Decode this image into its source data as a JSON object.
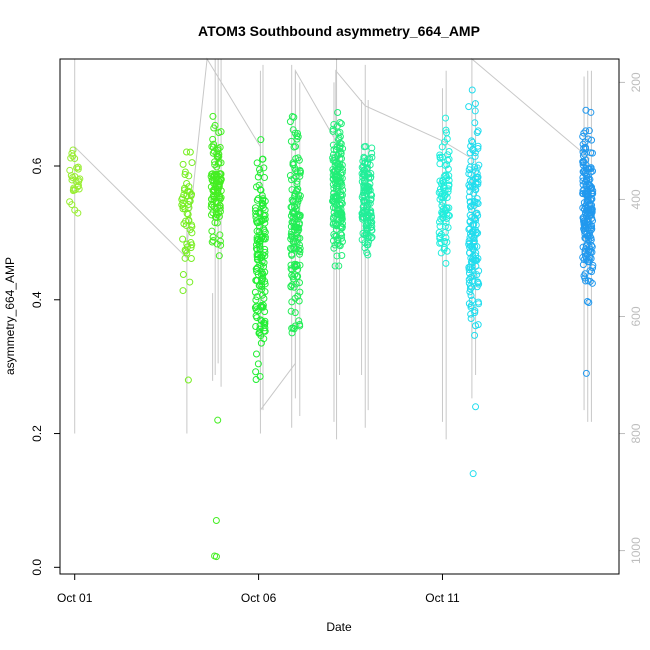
{
  "chart_data": {
    "type": "scatter",
    "title": "ATOM3 Southbound asymmetry_664_AMP",
    "xlabel": "Date",
    "ylabel": "asymmetry_664_AMP",
    "x_ticks": [
      "Oct 01",
      "Oct 06",
      "Oct 11"
    ],
    "x_tick_days": [
      1,
      6,
      11
    ],
    "xlim_days": [
      0.6,
      15.8
    ],
    "ylim": [
      -0.01,
      0.76
    ],
    "y_ticks": [
      0.0,
      0.2,
      0.4,
      0.6
    ],
    "y_tick_labels": [
      "0.0",
      "0.2",
      "0.4",
      "0.6"
    ],
    "secondary_axis": {
      "ticks": [
        200,
        400,
        600,
        800,
        1000
      ],
      "tick_labels": [
        "200",
        "400",
        "600",
        "800",
        "1000"
      ],
      "lim": [
        1040,
        160
      ],
      "color": "#bdbdbd",
      "series": {
        "name": "",
        "color": "#c8c8c8",
        "spikes": [
          {
            "day": 1.0,
            "top": 160,
            "bottom": 800
          },
          {
            "day": 4.05,
            "top": 440,
            "bottom": 800
          },
          {
            "day": 4.75,
            "top": 560,
            "bottom": 710
          },
          {
            "day": 4.82,
            "top": 160,
            "bottom": 700
          },
          {
            "day": 4.9,
            "top": 160,
            "bottom": 680
          },
          {
            "day": 4.98,
            "top": 160,
            "bottom": 720
          },
          {
            "day": 6.05,
            "top": 180,
            "bottom": 800
          },
          {
            "day": 6.12,
            "top": 170,
            "bottom": 760
          },
          {
            "day": 6.9,
            "top": 170,
            "bottom": 790
          },
          {
            "day": 7.0,
            "top": 180,
            "bottom": 740
          },
          {
            "day": 7.12,
            "top": 200,
            "bottom": 770
          },
          {
            "day": 8.05,
            "top": 200,
            "bottom": 780
          },
          {
            "day": 8.12,
            "top": 160,
            "bottom": 810
          },
          {
            "day": 8.2,
            "top": 300,
            "bottom": 700
          },
          {
            "day": 8.8,
            "top": 230,
            "bottom": 700
          },
          {
            "day": 8.9,
            "top": 170,
            "bottom": 790
          },
          {
            "day": 8.98,
            "top": 230,
            "bottom": 760
          },
          {
            "day": 11.0,
            "top": 210,
            "bottom": 780
          },
          {
            "day": 11.1,
            "top": 180,
            "bottom": 810
          },
          {
            "day": 11.8,
            "top": 280,
            "bottom": 740
          },
          {
            "day": 11.9,
            "top": 230,
            "bottom": 700
          },
          {
            "day": 14.85,
            "top": 190,
            "bottom": 760
          },
          {
            "day": 14.95,
            "top": 180,
            "bottom": 780
          },
          {
            "day": 15.05,
            "top": 180,
            "bottom": 780
          }
        ],
        "path": [
          [
            1.0,
            310
          ],
          [
            4.05,
            500
          ],
          [
            4.05,
            480
          ],
          [
            4.6,
            160
          ],
          [
            6.05,
            310
          ],
          [
            6.05,
            760
          ],
          [
            7.0,
            680
          ],
          [
            7.0,
            180
          ],
          [
            8.1,
            300
          ],
          [
            8.1,
            180
          ],
          [
            8.9,
            240
          ],
          [
            11.0,
            300
          ],
          [
            11.8,
            330
          ],
          [
            11.8,
            640
          ],
          [
            11.8,
            160
          ],
          [
            15.0,
            330
          ]
        ]
      }
    },
    "groups": [
      {
        "day": 1.0,
        "color": "#99ee33",
        "n": 28,
        "min": 0.48,
        "max": 0.67,
        "outliers": []
      },
      {
        "day": 4.05,
        "color": "#77ee22",
        "n": 55,
        "min": 0.38,
        "max": 0.67,
        "outliers": [
          0.28
        ]
      },
      {
        "day": 4.85,
        "color": "#44ee22",
        "n": 110,
        "min": 0.44,
        "max": 0.7,
        "outliers": [
          0.22,
          0.07,
          0.017,
          0.016
        ]
      },
      {
        "day": 6.05,
        "color": "#22ee33",
        "n": 150,
        "min": 0.25,
        "max": 0.69,
        "outliers": []
      },
      {
        "day": 7.0,
        "color": "#22ee55",
        "n": 150,
        "min": 0.3,
        "max": 0.72,
        "outliers": []
      },
      {
        "day": 8.15,
        "color": "#22ee77",
        "n": 170,
        "min": 0.41,
        "max": 0.7,
        "outliers": []
      },
      {
        "day": 8.95,
        "color": "#22ee99",
        "n": 130,
        "min": 0.42,
        "max": 0.67,
        "outliers": []
      },
      {
        "day": 11.05,
        "color": "#22eedd",
        "n": 90,
        "min": 0.41,
        "max": 0.69,
        "outliers": []
      },
      {
        "day": 11.85,
        "color": "#22ddee",
        "n": 150,
        "min": 0.28,
        "max": 0.75,
        "outliers": [
          0.24,
          0.14
        ]
      },
      {
        "day": 14.95,
        "color": "#2299ee",
        "n": 200,
        "min": 0.37,
        "max": 0.7,
        "outliers": [
          0.29
        ]
      }
    ]
  }
}
